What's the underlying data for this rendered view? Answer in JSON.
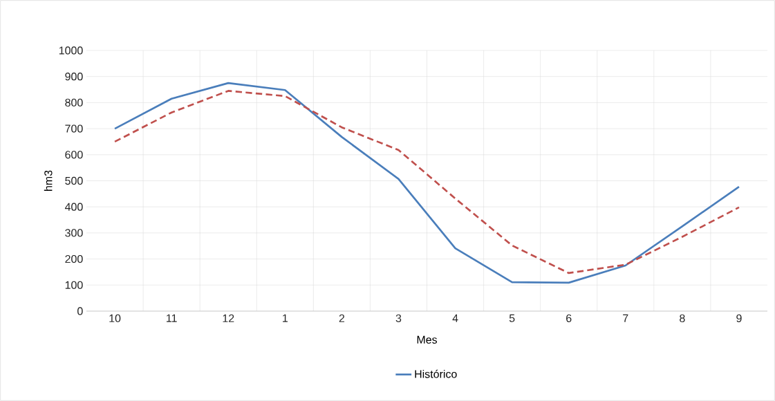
{
  "chart_data": {
    "type": "line",
    "xlabel": "Mes",
    "ylabel": "hm3",
    "categories": [
      "10",
      "11",
      "12",
      "1",
      "2",
      "3",
      "4",
      "5",
      "6",
      "7",
      "8",
      "9"
    ],
    "series": [
      {
        "name": "Histórico",
        "color": "#4a7ebb",
        "line_style": "solid",
        "values": [
          700,
          815,
          875,
          848,
          668,
          507,
          241,
          111,
          109,
          175,
          325,
          477
        ]
      },
      {
        "color": "#c0504d",
        "line_style": "dashed",
        "values": [
          650,
          762,
          845,
          825,
          705,
          618,
          432,
          252,
          146,
          178,
          285,
          398
        ]
      }
    ],
    "ylim": [
      0,
      1000
    ],
    "yticks": [
      0,
      100,
      200,
      300,
      400,
      500,
      600,
      700,
      800,
      900,
      1000
    ],
    "grid": true,
    "legend": "bottom"
  }
}
